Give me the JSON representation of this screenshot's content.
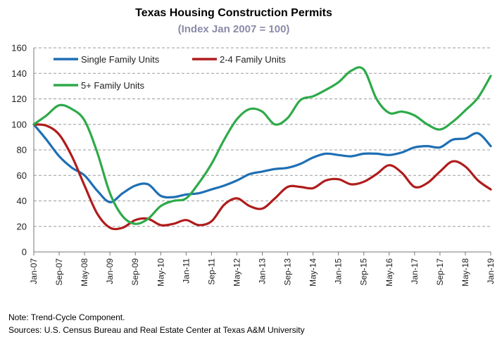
{
  "chart_data": {
    "type": "line",
    "title": "Texas Housing Construction Permits",
    "subtitle": "(Index Jan 2007 = 100)",
    "xlabel": "",
    "ylabel": "",
    "ylim": [
      0,
      160
    ],
    "yticks": [
      0,
      20,
      40,
      60,
      80,
      100,
      120,
      140,
      160
    ],
    "xlim": [
      "2007-01",
      "2019-01"
    ],
    "xticks": [
      "Jan-07",
      "Sep-07",
      "May-08",
      "Jan-09",
      "Sep-09",
      "May-10",
      "Jan-11",
      "Sep-11",
      "May-12",
      "Jan-13",
      "Sep-13",
      "May-14",
      "Jan-15",
      "Sep-15",
      "May-16",
      "Jan-17",
      "Sep-17",
      "May-18",
      "Jan-19"
    ],
    "grid": "horizontal",
    "legend": "top-left",
    "series": [
      {
        "name": "Single Family Units",
        "color": "#1f6fb4",
        "points": [
          [
            "2007-01",
            100
          ],
          [
            "2007-05",
            88
          ],
          [
            "2007-09",
            75
          ],
          [
            "2008-01",
            66
          ],
          [
            "2008-05",
            60
          ],
          [
            "2008-09",
            48
          ],
          [
            "2009-01",
            39
          ],
          [
            "2009-05",
            46
          ],
          [
            "2009-09",
            52
          ],
          [
            "2010-01",
            53
          ],
          [
            "2010-05",
            44
          ],
          [
            "2010-09",
            43
          ],
          [
            "2011-01",
            45
          ],
          [
            "2011-05",
            46
          ],
          [
            "2011-09",
            49
          ],
          [
            "2012-01",
            52
          ],
          [
            "2012-05",
            56
          ],
          [
            "2012-09",
            61
          ],
          [
            "2013-01",
            63
          ],
          [
            "2013-05",
            65
          ],
          [
            "2013-09",
            66
          ],
          [
            "2014-01",
            69
          ],
          [
            "2014-05",
            74
          ],
          [
            "2014-09",
            77
          ],
          [
            "2015-01",
            76
          ],
          [
            "2015-05",
            75
          ],
          [
            "2015-09",
            77
          ],
          [
            "2016-01",
            77
          ],
          [
            "2016-05",
            76
          ],
          [
            "2016-09",
            78
          ],
          [
            "2017-01",
            82
          ],
          [
            "2017-05",
            83
          ],
          [
            "2017-09",
            82
          ],
          [
            "2018-01",
            88
          ],
          [
            "2018-05",
            89
          ],
          [
            "2018-09",
            93
          ],
          [
            "2019-01",
            83
          ]
        ]
      },
      {
        "name": "2-4 Family Units",
        "color": "#b01c1c",
        "points": [
          [
            "2007-01",
            100
          ],
          [
            "2007-05",
            99
          ],
          [
            "2007-09",
            92
          ],
          [
            "2008-01",
            75
          ],
          [
            "2008-05",
            52
          ],
          [
            "2008-09",
            30
          ],
          [
            "2009-01",
            19
          ],
          [
            "2009-05",
            19
          ],
          [
            "2009-09",
            25
          ],
          [
            "2010-01",
            26
          ],
          [
            "2010-05",
            21
          ],
          [
            "2010-09",
            22
          ],
          [
            "2011-01",
            25
          ],
          [
            "2011-05",
            21
          ],
          [
            "2011-09",
            24
          ],
          [
            "2012-01",
            37
          ],
          [
            "2012-05",
            42
          ],
          [
            "2012-09",
            36
          ],
          [
            "2013-01",
            34
          ],
          [
            "2013-05",
            42
          ],
          [
            "2013-09",
            51
          ],
          [
            "2014-01",
            51
          ],
          [
            "2014-05",
            50
          ],
          [
            "2014-09",
            56
          ],
          [
            "2015-01",
            57
          ],
          [
            "2015-05",
            53
          ],
          [
            "2015-09",
            55
          ],
          [
            "2016-01",
            61
          ],
          [
            "2016-05",
            68
          ],
          [
            "2016-09",
            62
          ],
          [
            "2017-01",
            51
          ],
          [
            "2017-05",
            54
          ],
          [
            "2017-09",
            63
          ],
          [
            "2018-01",
            71
          ],
          [
            "2018-05",
            67
          ],
          [
            "2018-09",
            56
          ],
          [
            "2019-01",
            49
          ]
        ]
      },
      {
        "name": "5+ Family Units",
        "color": "#2eaa49",
        "points": [
          [
            "2007-01",
            100
          ],
          [
            "2007-05",
            107
          ],
          [
            "2007-09",
            115
          ],
          [
            "2008-01",
            112
          ],
          [
            "2008-05",
            103
          ],
          [
            "2008-09",
            78
          ],
          [
            "2009-01",
            46
          ],
          [
            "2009-05",
            28
          ],
          [
            "2009-09",
            22
          ],
          [
            "2010-01",
            26
          ],
          [
            "2010-05",
            36
          ],
          [
            "2010-09",
            40
          ],
          [
            "2011-01",
            42
          ],
          [
            "2011-05",
            54
          ],
          [
            "2011-09",
            69
          ],
          [
            "2012-01",
            88
          ],
          [
            "2012-05",
            104
          ],
          [
            "2012-09",
            112
          ],
          [
            "2013-01",
            110
          ],
          [
            "2013-05",
            100
          ],
          [
            "2013-09",
            105
          ],
          [
            "2014-01",
            119
          ],
          [
            "2014-05",
            122
          ],
          [
            "2014-09",
            127
          ],
          [
            "2015-01",
            133
          ],
          [
            "2015-05",
            142
          ],
          [
            "2015-09",
            143
          ],
          [
            "2016-01",
            120
          ],
          [
            "2016-05",
            109
          ],
          [
            "2016-09",
            110
          ],
          [
            "2017-01",
            107
          ],
          [
            "2017-05",
            100
          ],
          [
            "2017-09",
            96
          ],
          [
            "2018-01",
            102
          ],
          [
            "2018-05",
            111
          ],
          [
            "2018-09",
            121
          ],
          [
            "2019-01",
            138
          ]
        ]
      }
    ]
  },
  "notes": {
    "note": "Note: Trend-Cycle Component.",
    "sources": "Sources: U.S. Census Bureau and Real Estate Center at Texas A&M University"
  }
}
